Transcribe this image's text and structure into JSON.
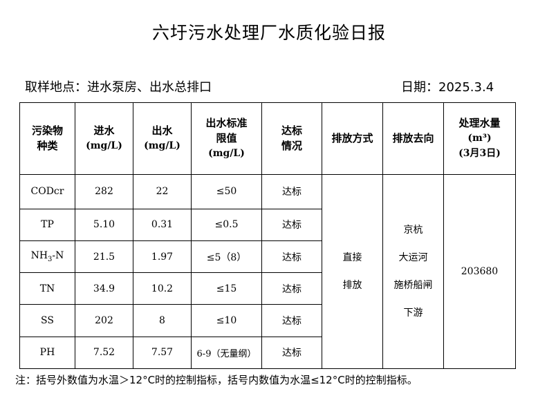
{
  "title": "六圩污水处理厂水质化验日报",
  "sampling_location": "取样地点：进水泵房、出水总排口",
  "date": "日期：2025.3.4",
  "headers": {
    "pollutant": [
      "污染物",
      "种类"
    ],
    "inlet": [
      "进水",
      "(mg/L)"
    ],
    "outlet": [
      "出水",
      "(mg/L)"
    ],
    "limit": [
      "出水标准",
      "限值",
      "(mg/L)"
    ],
    "compliance": [
      "达标",
      "情况"
    ],
    "discharge_method": "排放方式",
    "discharge_destination": "排放去向",
    "volume": [
      "处理水量",
      "(m³)",
      "(3月3日)"
    ]
  },
  "rows": [
    {
      "pollutant": "CODcr",
      "inlet": "282",
      "outlet": "22",
      "limit": "≤50",
      "status": "达标"
    },
    {
      "pollutant": "TP",
      "inlet": "5.10",
      "outlet": "0.31",
      "limit": "≤0.5",
      "status": "达标"
    },
    {
      "pollutant_main": "NH",
      "pollutant_sub": "3",
      "pollutant_tail": "-N",
      "inlet": "21.5",
      "outlet": "1.97",
      "limit": "≤5（8）",
      "status": "达标"
    },
    {
      "pollutant": "TN",
      "inlet": "34.9",
      "outlet": "10.2",
      "limit": "≤15",
      "status": "达标"
    },
    {
      "pollutant": "SS",
      "inlet": "202",
      "outlet": "8",
      "limit": "≤10",
      "status": "达标"
    },
    {
      "pollutant": "PH",
      "inlet": "7.52",
      "outlet": "7.57",
      "limit": "6-9（无量纲）",
      "status": "达标"
    }
  ],
  "discharge_method": [
    "直接",
    "排放"
  ],
  "discharge_destination": [
    "京杭",
    "大运河",
    "施桥船闸",
    "下游"
  ],
  "treated_volume": "203680",
  "note": "注：括号外数值为水温＞12°C时的控制指标，括号内数值为水温≤12°C时的控制指标。"
}
